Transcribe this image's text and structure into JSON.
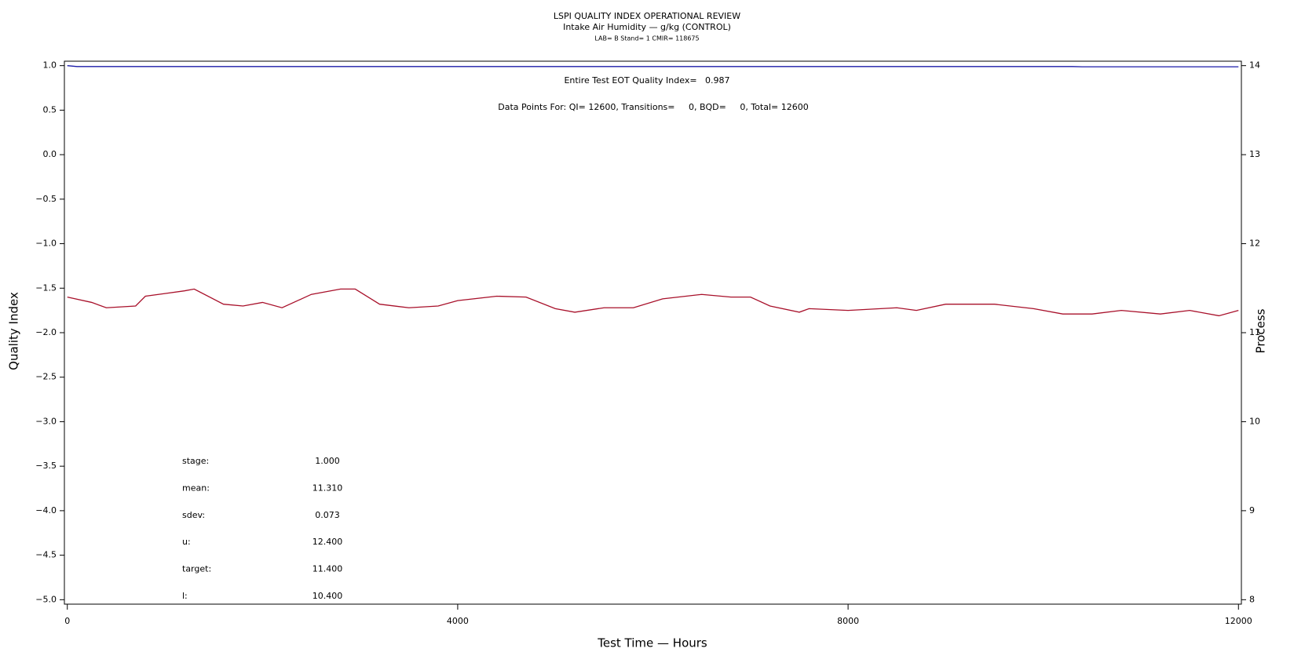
{
  "chart_data": {
    "type": "line",
    "title": "LSPI QUALITY INDEX OPERATIONAL REVIEW",
    "subtitle": "Intake Air Humidity — g/kg (CONTROL)",
    "caption": "LAB= B Stand= 1 CMIR= 118675",
    "annotations": [
      "Entire Test EOT Quality Index=   0.987",
      "Data Points For: QI= 12600, Transitions=     0, BQD=     0, Total= 12600"
    ],
    "stats": [
      [
        "stage:",
        "1.000"
      ],
      [
        "mean:",
        "11.310"
      ],
      [
        "sdev:",
        "0.073"
      ],
      [
        "u:",
        "12.400"
      ],
      [
        "target:",
        "11.400"
      ],
      [
        "l:",
        "10.400"
      ]
    ],
    "x_label": "Test Time — Hours",
    "y_label": "Quality Index",
    "y2_label": "Process",
    "xlim": [
      -30,
      12030
    ],
    "ylim": [
      -5.05,
      1.05
    ],
    "y2lim": [
      7.95,
      14.05
    ],
    "xticks": [
      0,
      4000,
      8000,
      12000
    ],
    "yticks": [
      {
        "value": -5,
        "label": "−5.0"
      },
      {
        "value": -4.5,
        "label": "−4.5"
      },
      {
        "value": -4,
        "label": "−4.0"
      },
      {
        "value": -3.5,
        "label": "−3.5"
      },
      {
        "value": -3,
        "label": "−3.0"
      },
      {
        "value": -2.5,
        "label": "−2.5"
      },
      {
        "value": -2,
        "label": "−2.0"
      },
      {
        "value": -1.5,
        "label": "−1.5"
      },
      {
        "value": -1,
        "label": "−1.0"
      },
      {
        "value": -0.5,
        "label": "−0.5"
      },
      {
        "value": 0,
        "label": "0.0"
      },
      {
        "value": 0.5,
        "label": "0.5"
      },
      {
        "value": 1,
        "label": "1.0"
      }
    ],
    "y2ticks": [
      8,
      9,
      10,
      11,
      12,
      13,
      14
    ],
    "series": [
      {
        "color": "#1a1aa8",
        "axis": "y",
        "x": [
          0,
          100,
          10300,
          10400,
          12000
        ],
        "values": [
          1.0,
          0.99,
          0.99,
          0.987,
          0.987
        ]
      },
      {
        "color": "#a8102a",
        "axis": "y2",
        "x": [
          0,
          250,
          400,
          700,
          800,
          1000,
          1200,
          1300,
          1600,
          1800,
          2000,
          2200,
          2500,
          2800,
          2950,
          3200,
          3500,
          3800,
          4000,
          4400,
          4700,
          5000,
          5200,
          5500,
          5800,
          6100,
          6500,
          6800,
          7000,
          7200,
          7500,
          7600,
          8000,
          8500,
          8700,
          9000,
          9500,
          9900,
          10200,
          10500,
          10800,
          11200,
          11500,
          11800,
          12000
        ],
        "values": [
          11.4,
          11.34,
          11.28,
          11.3,
          11.41,
          11.44,
          11.47,
          11.49,
          11.32,
          11.3,
          11.34,
          11.28,
          11.43,
          11.49,
          11.49,
          11.32,
          11.28,
          11.3,
          11.36,
          11.41,
          11.4,
          11.27,
          11.23,
          11.28,
          11.28,
          11.38,
          11.43,
          11.4,
          11.4,
          11.3,
          11.23,
          11.27,
          11.25,
          11.28,
          11.25,
          11.32,
          11.32,
          11.27,
          11.21,
          11.21,
          11.25,
          11.21,
          11.25,
          11.19,
          11.25
        ]
      }
    ]
  }
}
